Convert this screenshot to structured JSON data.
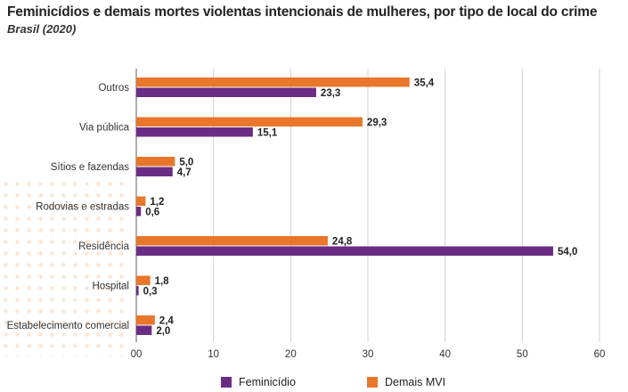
{
  "chart_data": {
    "type": "bar",
    "orientation": "horizontal",
    "title": "Feminicídios e demais mortes violentas intencionais de mulheres, por tipo de local do crime",
    "subtitle": "Brasil (2020)",
    "categories": [
      "Outros",
      "Via pública",
      "Sítios e fazendas",
      "Rodovias e estradas",
      "Residência",
      "Hospital",
      "Estabelecimento comercial"
    ],
    "series": [
      {
        "name": "Demais MVI",
        "color": "#E8762B",
        "values": [
          35.4,
          29.3,
          5.0,
          1.2,
          24.8,
          1.8,
          2.4
        ],
        "labels": [
          "35,4",
          "29,3",
          "5,0",
          "1,2",
          "24,8",
          "1,8",
          "2,4"
        ]
      },
      {
        "name": "Feminicídio",
        "color": "#6B2C83",
        "values": [
          23.3,
          15.1,
          4.7,
          0.6,
          54.0,
          0.3,
          2.0
        ],
        "labels": [
          "23,3",
          "15,1",
          "4,7",
          "0,6",
          "54,0",
          "0,3",
          "2,0"
        ]
      }
    ],
    "xlim": [
      0,
      60
    ],
    "xticks": [
      0,
      10,
      20,
      30,
      40,
      50,
      60
    ],
    "xtick_labels": [
      "00",
      "10",
      "20",
      "30",
      "40",
      "50",
      "60"
    ],
    "grid": true,
    "legend_position": "bottom",
    "legend": [
      "Feminicídio",
      "Demais MVI"
    ]
  }
}
